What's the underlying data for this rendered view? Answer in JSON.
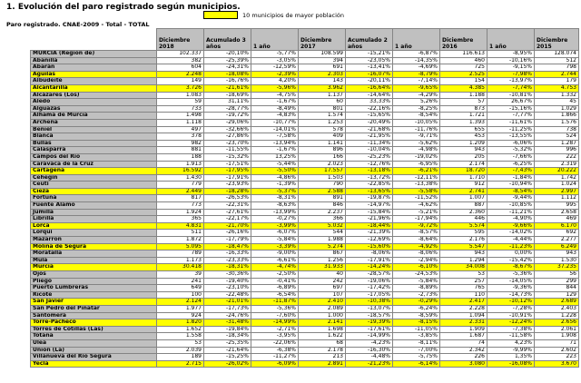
{
  "page": {
    "title": "1. Evolución del paro registrado según municipios.",
    "subtitle": "Paro registrado. CNAE-2009 - Total - TOTAL"
  },
  "legend": {
    "label": "10 municipios de mayor población",
    "highlight_color": "#FFFF00"
  },
  "colors": {
    "header_bg": "#C0C0C0",
    "name_column_bg": "#C0C0C0",
    "highlight_row_bg": "#FFFF00",
    "grid_line": "#848484"
  },
  "table": {
    "columns": [
      "",
      "Diciembre 2018",
      "Acumulado 3 años",
      "1 año",
      "Diciembre 2017",
      "Acumulado 2 años",
      "1 año",
      "Diciembre 2016",
      "1 año",
      "Diciembre 2015"
    ],
    "rows": [
      {
        "name": "MURCIA (Región de)",
        "highlight": false,
        "values": [
          "102.337",
          "-20,10%",
          "-5,77%",
          "108.599",
          "-15,21%",
          "-6,87%",
          "116.613",
          "-8,95%",
          "128.074"
        ]
      },
      {
        "name": "Abanilla",
        "highlight": false,
        "values": [
          "382",
          "-25,39%",
          "-3,05%",
          "394",
          "-23,05%",
          "-14,35%",
          "460",
          "-10,16%",
          "512"
        ]
      },
      {
        "name": "Abarán",
        "highlight": false,
        "values": [
          "604",
          "-24,31%",
          "-12,59%",
          "691",
          "-13,41%",
          "-4,69%",
          "725",
          "-9,15%",
          "798"
        ]
      },
      {
        "name": "Águilas",
        "highlight": true,
        "values": [
          "2.248",
          "-18,08%",
          "-2,39%",
          "2.303",
          "-16,07%",
          "-8,79%",
          "2.525",
          "-7,98%",
          "2.744"
        ]
      },
      {
        "name": "Albudeite",
        "highlight": false,
        "values": [
          "149",
          "-16,76%",
          "4,20%",
          "143",
          "-20,11%",
          "-7,14%",
          "154",
          "-13,97%",
          "179"
        ]
      },
      {
        "name": "Alcantarilla",
        "highlight": true,
        "values": [
          "3.726",
          "-21,61%",
          "-5,96%",
          "3.962",
          "-16,64%",
          "-9,65%",
          "4.385",
          "-7,74%",
          "4.753"
        ]
      },
      {
        "name": "Alcázares (Los)",
        "highlight": false,
        "values": [
          "1.083",
          "-18,69%",
          "-4,75%",
          "1.137",
          "-14,64%",
          "-4,29%",
          "1.188",
          "-10,81%",
          "1.332"
        ]
      },
      {
        "name": "Aledo",
        "highlight": false,
        "values": [
          "59",
          "31,11%",
          "-1,67%",
          "60",
          "33,33%",
          "5,26%",
          "57",
          "26,67%",
          "45"
        ]
      },
      {
        "name": "Alguazas",
        "highlight": false,
        "values": [
          "733",
          "-28,77%",
          "-8,49%",
          "801",
          "-22,16%",
          "-8,25%",
          "873",
          "-15,16%",
          "1.029"
        ]
      },
      {
        "name": "Alhama de Murcia",
        "highlight": false,
        "values": [
          "1.498",
          "-19,72%",
          "-4,83%",
          "1.574",
          "-15,65%",
          "-8,54%",
          "1.721",
          "-7,77%",
          "1.866"
        ]
      },
      {
        "name": "Archena",
        "highlight": false,
        "values": [
          "1.118",
          "-29,06%",
          "-10,77%",
          "1.253",
          "-20,49%",
          "-10,05%",
          "1.393",
          "-11,61%",
          "1.576"
        ]
      },
      {
        "name": "Beniel",
        "highlight": false,
        "values": [
          "497",
          "-32,66%",
          "-14,01%",
          "578",
          "-21,68%",
          "-11,76%",
          "655",
          "-11,25%",
          "738"
        ]
      },
      {
        "name": "Blanca",
        "highlight": false,
        "values": [
          "378",
          "-27,86%",
          "-7,58%",
          "409",
          "-21,95%",
          "-9,71%",
          "453",
          "-13,55%",
          "524"
        ]
      },
      {
        "name": "Bullas",
        "highlight": false,
        "values": [
          "982",
          "-23,70%",
          "-13,94%",
          "1.141",
          "-11,34%",
          "-5,62%",
          "1.209",
          "-6,06%",
          "1.287"
        ]
      },
      {
        "name": "Calasparra",
        "highlight": false,
        "values": [
          "881",
          "-11,55%",
          "-1,67%",
          "896",
          "-10,04%",
          "-4,98%",
          "943",
          "-5,32%",
          "996"
        ]
      },
      {
        "name": "Campos del Río",
        "highlight": false,
        "values": [
          "188",
          "-15,32%",
          "13,25%",
          "166",
          "-25,23%",
          "-19,02%",
          "205",
          "-7,66%",
          "222"
        ]
      },
      {
        "name": "Caravaca de la Cruz",
        "highlight": false,
        "values": [
          "1.913",
          "-17,51%",
          "-5,44%",
          "2.023",
          "-12,76%",
          "-6,95%",
          "2.174",
          "-6,25%",
          "2.319"
        ]
      },
      {
        "name": "Cartagena",
        "highlight": true,
        "values": [
          "16.592",
          "-17,95%",
          "-5,50%",
          "17.557",
          "-13,18%",
          "-6,21%",
          "18.720",
          "-7,43%",
          "20.222"
        ]
      },
      {
        "name": "Cehegín",
        "highlight": false,
        "values": [
          "1.430",
          "-17,91%",
          "-4,86%",
          "1.503",
          "-13,72%",
          "-12,11%",
          "1.710",
          "-1,84%",
          "1.742"
        ]
      },
      {
        "name": "Ceutí",
        "highlight": false,
        "values": [
          "779",
          "-23,93%",
          "-1,39%",
          "790",
          "-22,85%",
          "-13,38%",
          "912",
          "-10,94%",
          "1.024"
        ]
      },
      {
        "name": "Cieza",
        "highlight": true,
        "values": [
          "2.449",
          "-18,28%",
          "-5,37%",
          "2.588",
          "-13,65%",
          "-5,58%",
          "2.741",
          "-8,54%",
          "2.997"
        ]
      },
      {
        "name": "Fortuna",
        "highlight": false,
        "values": [
          "817",
          "-26,53%",
          "-8,31%",
          "891",
          "-19,87%",
          "-11,52%",
          "1.007",
          "-9,44%",
          "1.112"
        ]
      },
      {
        "name": "Fuente Álamo",
        "highlight": false,
        "values": [
          "773",
          "-22,31%",
          "-8,63%",
          "846",
          "-14,97%",
          "-4,62%",
          "887",
          "-10,85%",
          "995"
        ]
      },
      {
        "name": "Jumilla",
        "highlight": false,
        "values": [
          "1.924",
          "-27,61%",
          "-13,99%",
          "2.237",
          "-15,84%",
          "-5,21%",
          "2.360",
          "-11,21%",
          "2.658"
        ]
      },
      {
        "name": "Librilla",
        "highlight": false,
        "values": [
          "365",
          "-22,17%",
          "-0,27%",
          "366",
          "-21,96%",
          "-17,94%",
          "446",
          "-4,90%",
          "469"
        ]
      },
      {
        "name": "Lorca",
        "highlight": true,
        "values": [
          "4.831",
          "-21,70%",
          "-3,99%",
          "5.032",
          "-18,44%",
          "-9,72%",
          "5.574",
          "-9,66%",
          "6.170"
        ]
      },
      {
        "name": "Lorquí",
        "highlight": false,
        "values": [
          "511",
          "-26,16%",
          "-6,07%",
          "544",
          "-21,39%",
          "-8,57%",
          "595",
          "-14,02%",
          "692"
        ]
      },
      {
        "name": "Mazarrón",
        "highlight": false,
        "values": [
          "1.872",
          "-17,79%",
          "-5,84%",
          "1.988",
          "-12,69%",
          "-8,64%",
          "2.176",
          "-4,44%",
          "2.277"
        ]
      },
      {
        "name": "Molina de Segura",
        "highlight": true,
        "values": [
          "5.095",
          "-18,47%",
          "-3,39%",
          "5.274",
          "-15,60%",
          "-4,92%",
          "5.547",
          "-11,23%",
          "6.249"
        ]
      },
      {
        "name": "Moratalla",
        "highlight": false,
        "values": [
          "789",
          "-16,33%",
          "-9,00%",
          "867",
          "-8,06%",
          "-8,06%",
          "943",
          "0,00%",
          "943"
        ]
      },
      {
        "name": "Mula",
        "highlight": false,
        "values": [
          "1.173",
          "-23,33%",
          "-6,61%",
          "1.256",
          "-17,91%",
          "-2,94%",
          "1.294",
          "-15,42%",
          "1.530"
        ]
      },
      {
        "name": "Murcia",
        "highlight": true,
        "values": [
          "30.418",
          "-18,31%",
          "-4,74%",
          "31.933",
          "-14,24%",
          "-6,10%",
          "34.008",
          "-8,67%",
          "37.235"
        ]
      },
      {
        "name": "Ojós",
        "highlight": false,
        "values": [
          "39",
          "-30,36%",
          "-2,50%",
          "40",
          "-28,57%",
          "-24,53%",
          "53",
          "-5,36%",
          "56"
        ]
      },
      {
        "name": "Pliego",
        "highlight": false,
        "values": [
          "241",
          "-19,40%",
          "-0,41%",
          "242",
          "-19,06%",
          "-5,84%",
          "257",
          "-14,05%",
          "299"
        ]
      },
      {
        "name": "Puerto Lumbreras",
        "highlight": false,
        "values": [
          "649",
          "-23,10%",
          "-6,89%",
          "697",
          "-17,42%",
          "-8,89%",
          "765",
          "-9,36%",
          "844"
        ]
      },
      {
        "name": "Ricote",
        "highlight": false,
        "values": [
          "100",
          "-22,48%",
          "-6,54%",
          "107",
          "-17,05%",
          "-2,73%",
          "110",
          "-14,73%",
          "129"
        ]
      },
      {
        "name": "San Javier",
        "highlight": true,
        "values": [
          "2.124",
          "-21,01%",
          "-11,87%",
          "2.410",
          "-10,38%",
          "-0,29%",
          "2.417",
          "-10,12%",
          "2.689"
        ]
      },
      {
        "name": "San Pedro del Pinatar",
        "highlight": false,
        "values": [
          "1.977",
          "-17,73%",
          "-5,36%",
          "2.089",
          "-13,07%",
          "-6,24%",
          "2.228",
          "-7,28%",
          "2.403"
        ]
      },
      {
        "name": "Santomera",
        "highlight": false,
        "values": [
          "924",
          "-24,76%",
          "-7,60%",
          "1.000",
          "-18,57%",
          "-8,59%",
          "1.094",
          "-10,91%",
          "1.228"
        ]
      },
      {
        "name": "Torre-Pacheco",
        "highlight": true,
        "values": [
          "1.820",
          "-31,48%",
          "-14,99%",
          "2.141",
          "-19,39%",
          "-8,15%",
          "2.331",
          "-12,24%",
          "2.656"
        ]
      },
      {
        "name": "Torres de Cotillas (Las)",
        "highlight": false,
        "values": [
          "1.652",
          "-19,84%",
          "-2,71%",
          "1.698",
          "-17,61%",
          "-11,05%",
          "1.909",
          "-7,38%",
          "2.061"
        ]
      },
      {
        "name": "Totana",
        "highlight": false,
        "values": [
          "1.558",
          "-18,34%",
          "-3,95%",
          "1.622",
          "-14,99%",
          "-3,85%",
          "1.687",
          "-11,58%",
          "1.908"
        ]
      },
      {
        "name": "Ulea",
        "highlight": false,
        "values": [
          "53",
          "-25,35%",
          "-22,06%",
          "68",
          "-4,23%",
          "-8,11%",
          "74",
          "4,23%",
          "71"
        ]
      },
      {
        "name": "Unión (La)",
        "highlight": false,
        "values": [
          "2.039",
          "-21,64%",
          "-6,38%",
          "2.178",
          "-16,30%",
          "-7,00%",
          "2.342",
          "-9,99%",
          "2.602"
        ]
      },
      {
        "name": "Villanueva del Río Segura",
        "highlight": false,
        "values": [
          "189",
          "-15,25%",
          "-11,27%",
          "213",
          "-4,48%",
          "-5,75%",
          "226",
          "1,35%",
          "223"
        ]
      },
      {
        "name": "Yecla",
        "highlight": true,
        "values": [
          "2.715",
          "-26,02%",
          "-6,09%",
          "2.891",
          "-21,23%",
          "-6,14%",
          "3.080",
          "-16,08%",
          "3.670"
        ]
      }
    ]
  }
}
